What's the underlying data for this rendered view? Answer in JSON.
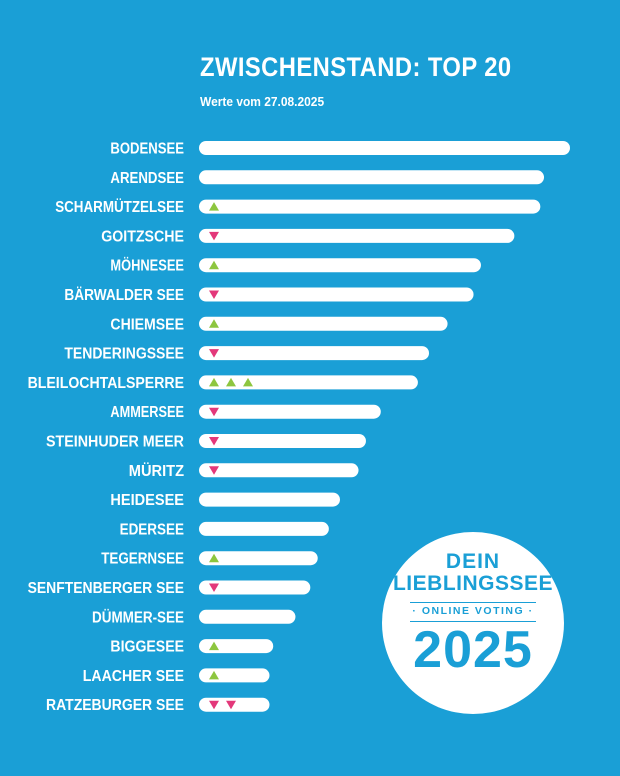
{
  "chart_data": {
    "type": "bar",
    "title": "ZWISCHENSTAND: TOP 20",
    "subtitle": "Werte vom 27.08.2025",
    "categories": [
      "BODENSEE",
      "ARENDSEE",
      "SCHARMÜTZELSEE",
      "GOITZSCHE",
      "MÖHNESEE",
      "BÄRWALDER SEE",
      "CHIEMSEE",
      "TENDERINGSSEE",
      "BLEILOCHTALSPERRE",
      "AMMERSEE",
      "STEINHUDER MEER",
      "MÜRITZ",
      "HEIDESEE",
      "EDERSEE",
      "TEGERNSEE",
      "SENFTENBERGER SEE",
      "DÜMMER-SEE",
      "BIGGESEE",
      "LAACHER SEE",
      "RATZEBURGER SEE"
    ],
    "values": [
      100,
      93,
      92,
      85,
      76,
      74,
      67,
      62,
      59,
      49,
      45,
      43,
      38,
      35,
      32,
      30,
      26,
      20,
      19,
      19
    ],
    "trends": [
      0,
      0,
      1,
      -1,
      1,
      -1,
      1,
      -1,
      3,
      -1,
      -1,
      -1,
      0,
      0,
      1,
      -1,
      0,
      1,
      1,
      -2
    ],
    "xlim": [
      0,
      100
    ],
    "orientation": "horizontal",
    "axis_visible": false,
    "grid": false
  },
  "badge": {
    "line1": "DEIN",
    "line2": "LIEBLINGSSEE",
    "voting": "· ONLINE VOTING ·",
    "year": "2025"
  },
  "colors": {
    "background": "#1a9fd6",
    "bar": "#ffffff",
    "up": "#8dc63f",
    "down": "#e3387a"
  }
}
